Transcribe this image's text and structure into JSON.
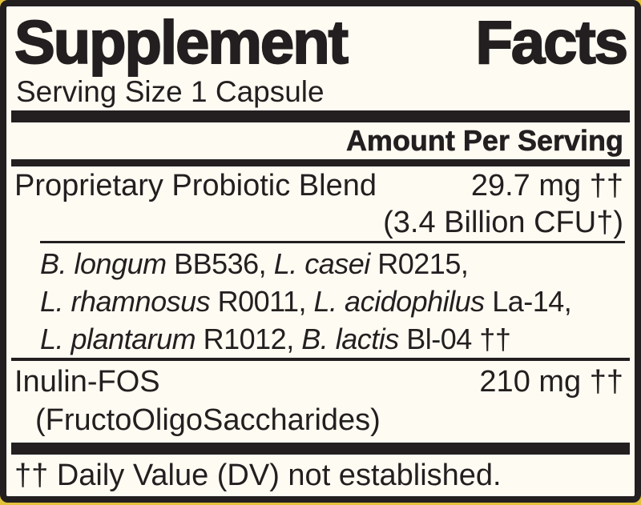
{
  "colors": {
    "panel_background": "#FDFBF2",
    "ink": "#231F20",
    "base_yellow": "#E2C23B"
  },
  "title": {
    "word_left": "Supplement",
    "word_right": "Facts"
  },
  "serving_size": "Serving Size 1 Capsule",
  "amount_per_serving_header": "Amount Per Serving",
  "blend": {
    "name": "Proprietary Probiotic Blend",
    "amount": "29.7 mg ††",
    "cfu": "(3.4 Billion CFU†)",
    "strain_lines": [
      {
        "seg0": "B. longum",
        "seg1": " BB536, ",
        "seg2": "L. casei",
        "seg3": " R0215,"
      },
      {
        "seg0": "L. rhamnosus",
        "seg1": " R0011, ",
        "seg2": "L. acidophilus",
        "seg3": " La-14,"
      },
      {
        "seg0": "L. plantarum",
        "seg1": " R1012, ",
        "seg2": "B. lactis",
        "seg3": " Bl-04 ††"
      }
    ]
  },
  "inulin": {
    "name": "Inulin-FOS",
    "amount": "210 mg ††",
    "sub": "(FructoOligoSaccharides)"
  },
  "footnote": "†† Daily Value (DV) not established."
}
